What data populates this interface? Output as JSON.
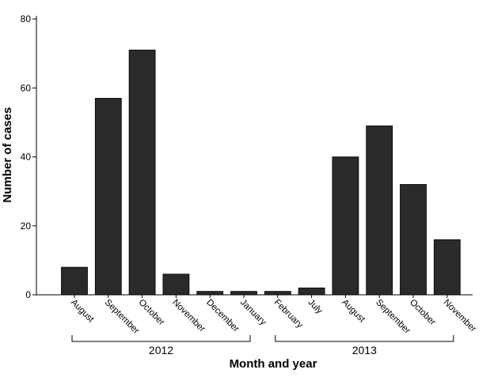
{
  "chart_data": {
    "type": "bar",
    "categories": [
      "August",
      "September",
      "October",
      "November",
      "December",
      "January",
      "February",
      "July",
      "August",
      "September",
      "October",
      "November"
    ],
    "values": [
      8,
      57,
      71,
      6,
      1,
      1,
      1,
      2,
      40,
      49,
      32,
      16
    ],
    "xlabel": "Month and year",
    "ylabel": "Number of cases",
    "ylim": [
      0,
      80
    ],
    "yticks": [
      0,
      20,
      40,
      60,
      80
    ],
    "year_groups": [
      {
        "label": "2012",
        "from": 0,
        "to": 5
      },
      {
        "label": "2013",
        "from": 6,
        "to": 11
      }
    ],
    "bar_color": "#2a2a2a",
    "grid": false,
    "legend": "none"
  }
}
